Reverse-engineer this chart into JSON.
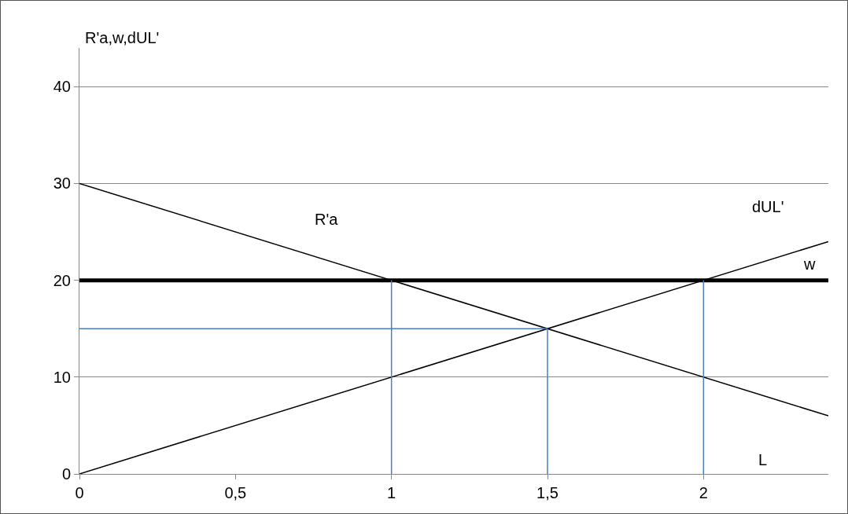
{
  "chart_data": {
    "type": "line",
    "ylabel": "R'a,w,dUL'",
    "xlabel": "L",
    "xlim": [
      0,
      2.4
    ],
    "ylim": [
      0,
      44
    ],
    "xticks": [
      0,
      {
        "value": 0.5,
        "label": "0,5"
      },
      1,
      {
        "value": 1.5,
        "label": "1,5"
      },
      2
    ],
    "yticks": [
      0,
      10,
      20,
      30,
      40
    ],
    "grid": "y",
    "legend": false,
    "marker": "none",
    "line_style": "solid",
    "series": [
      {
        "name": "R'a",
        "color": "#000000",
        "x": [
          0,
          2.4
        ],
        "values": [
          30,
          6
        ]
      },
      {
        "name": "dUL'",
        "color": "#000000",
        "x": [
          0,
          2.4
        ],
        "values": [
          0,
          24
        ]
      },
      {
        "name": "w",
        "color": "#000000",
        "x": [
          0,
          2.4
        ],
        "values": [
          20,
          20
        ]
      },
      {
        "color": "#4a7ebb",
        "x": [
          0,
          1.5
        ],
        "values": [
          15,
          15
        ]
      },
      {
        "color": "#4a7ebb",
        "x": [
          1,
          1
        ],
        "values": [
          0,
          20
        ]
      },
      {
        "color": "#4a7ebb",
        "x": [
          1.5,
          1.5
        ],
        "values": [
          0,
          15
        ]
      },
      {
        "color": "#4a7ebb",
        "x": [
          2,
          2
        ],
        "values": [
          0,
          20
        ]
      }
    ]
  }
}
